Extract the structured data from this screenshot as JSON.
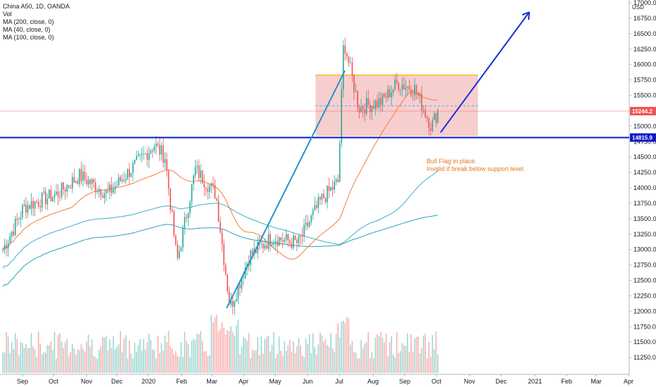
{
  "legend": {
    "title": "China A50, 1D, OANDA",
    "vol": "Vol",
    "ma200": "MA (200, close, 0)",
    "ma40": "MA (40, close, 0)",
    "ma100": "MA (100, close, 0)"
  },
  "currency": "USD",
  "note": {
    "line1": "Bull Flag in place.",
    "line2": "Invalid if break below support level."
  },
  "price_tags": {
    "last": "15244.2",
    "support": "14815.9"
  },
  "colors": {
    "up": "#26a69a",
    "down": "#ef5350",
    "ma40": "#f57c3a",
    "ma100": "#3ab0c8",
    "ma200": "#2aa1b8",
    "support": "#0a18c8",
    "arrow": "#1532d6",
    "trend": "#2196c8",
    "flag_fill": "#f3b3b3",
    "flag_top": "#f7c744",
    "last_line": "#ef5350"
  },
  "chart_data": {
    "type": "candlestick",
    "symbol": "China A50, 1D, OANDA",
    "y_range": [
      11100,
      17050
    ],
    "y_ticks": [
      11250,
      11500,
      11750,
      12000,
      12250,
      12500,
      12750,
      13000,
      13250,
      13500,
      13750,
      14000,
      14250,
      14500,
      14750,
      15000,
      15250,
      15500,
      15750,
      16000,
      16250,
      16500,
      16750,
      17000
    ],
    "x_months": [
      "Sep",
      "Oct",
      "Nov",
      "Dec",
      "2020",
      "Feb",
      "Mar",
      "Apr",
      "May",
      "Jun",
      "Jul",
      "Aug",
      "Sep",
      "Oct",
      "Nov",
      "Dec",
      "2021",
      "Feb",
      "Mar",
      "Apr"
    ],
    "last_price": 15244.2,
    "support_level": 14815.9,
    "flag_box": {
      "top": 15830,
      "bottom": 14840,
      "from": "2020-06-10",
      "to": "2020-11-05"
    },
    "key_closes": [
      {
        "date": "2019-08-26",
        "value": 13000
      },
      {
        "date": "2019-09-15",
        "value": 13700
      },
      {
        "date": "2019-10-15",
        "value": 13900
      },
      {
        "date": "2019-11-05",
        "value": 14200
      },
      {
        "date": "2019-12-01",
        "value": 13900
      },
      {
        "date": "2020-01-13",
        "value": 14700
      },
      {
        "date": "2020-01-23",
        "value": 14500
      },
      {
        "date": "2020-02-03",
        "value": 12800
      },
      {
        "date": "2020-02-20",
        "value": 14300
      },
      {
        "date": "2020-03-10",
        "value": 13900
      },
      {
        "date": "2020-03-23",
        "value": 12050
      },
      {
        "date": "2020-04-10",
        "value": 12900
      },
      {
        "date": "2020-05-01",
        "value": 13200
      },
      {
        "date": "2020-05-25",
        "value": 13100
      },
      {
        "date": "2020-06-15",
        "value": 13800
      },
      {
        "date": "2020-07-01",
        "value": 14100
      },
      {
        "date": "2020-07-06",
        "value": 16400
      },
      {
        "date": "2020-07-20",
        "value": 15300
      },
      {
        "date": "2020-08-10",
        "value": 15400
      },
      {
        "date": "2020-08-25",
        "value": 15700
      },
      {
        "date": "2020-09-10",
        "value": 15600
      },
      {
        "date": "2020-09-25",
        "value": 15000
      },
      {
        "date": "2020-10-01",
        "value": 15244
      }
    ]
  }
}
